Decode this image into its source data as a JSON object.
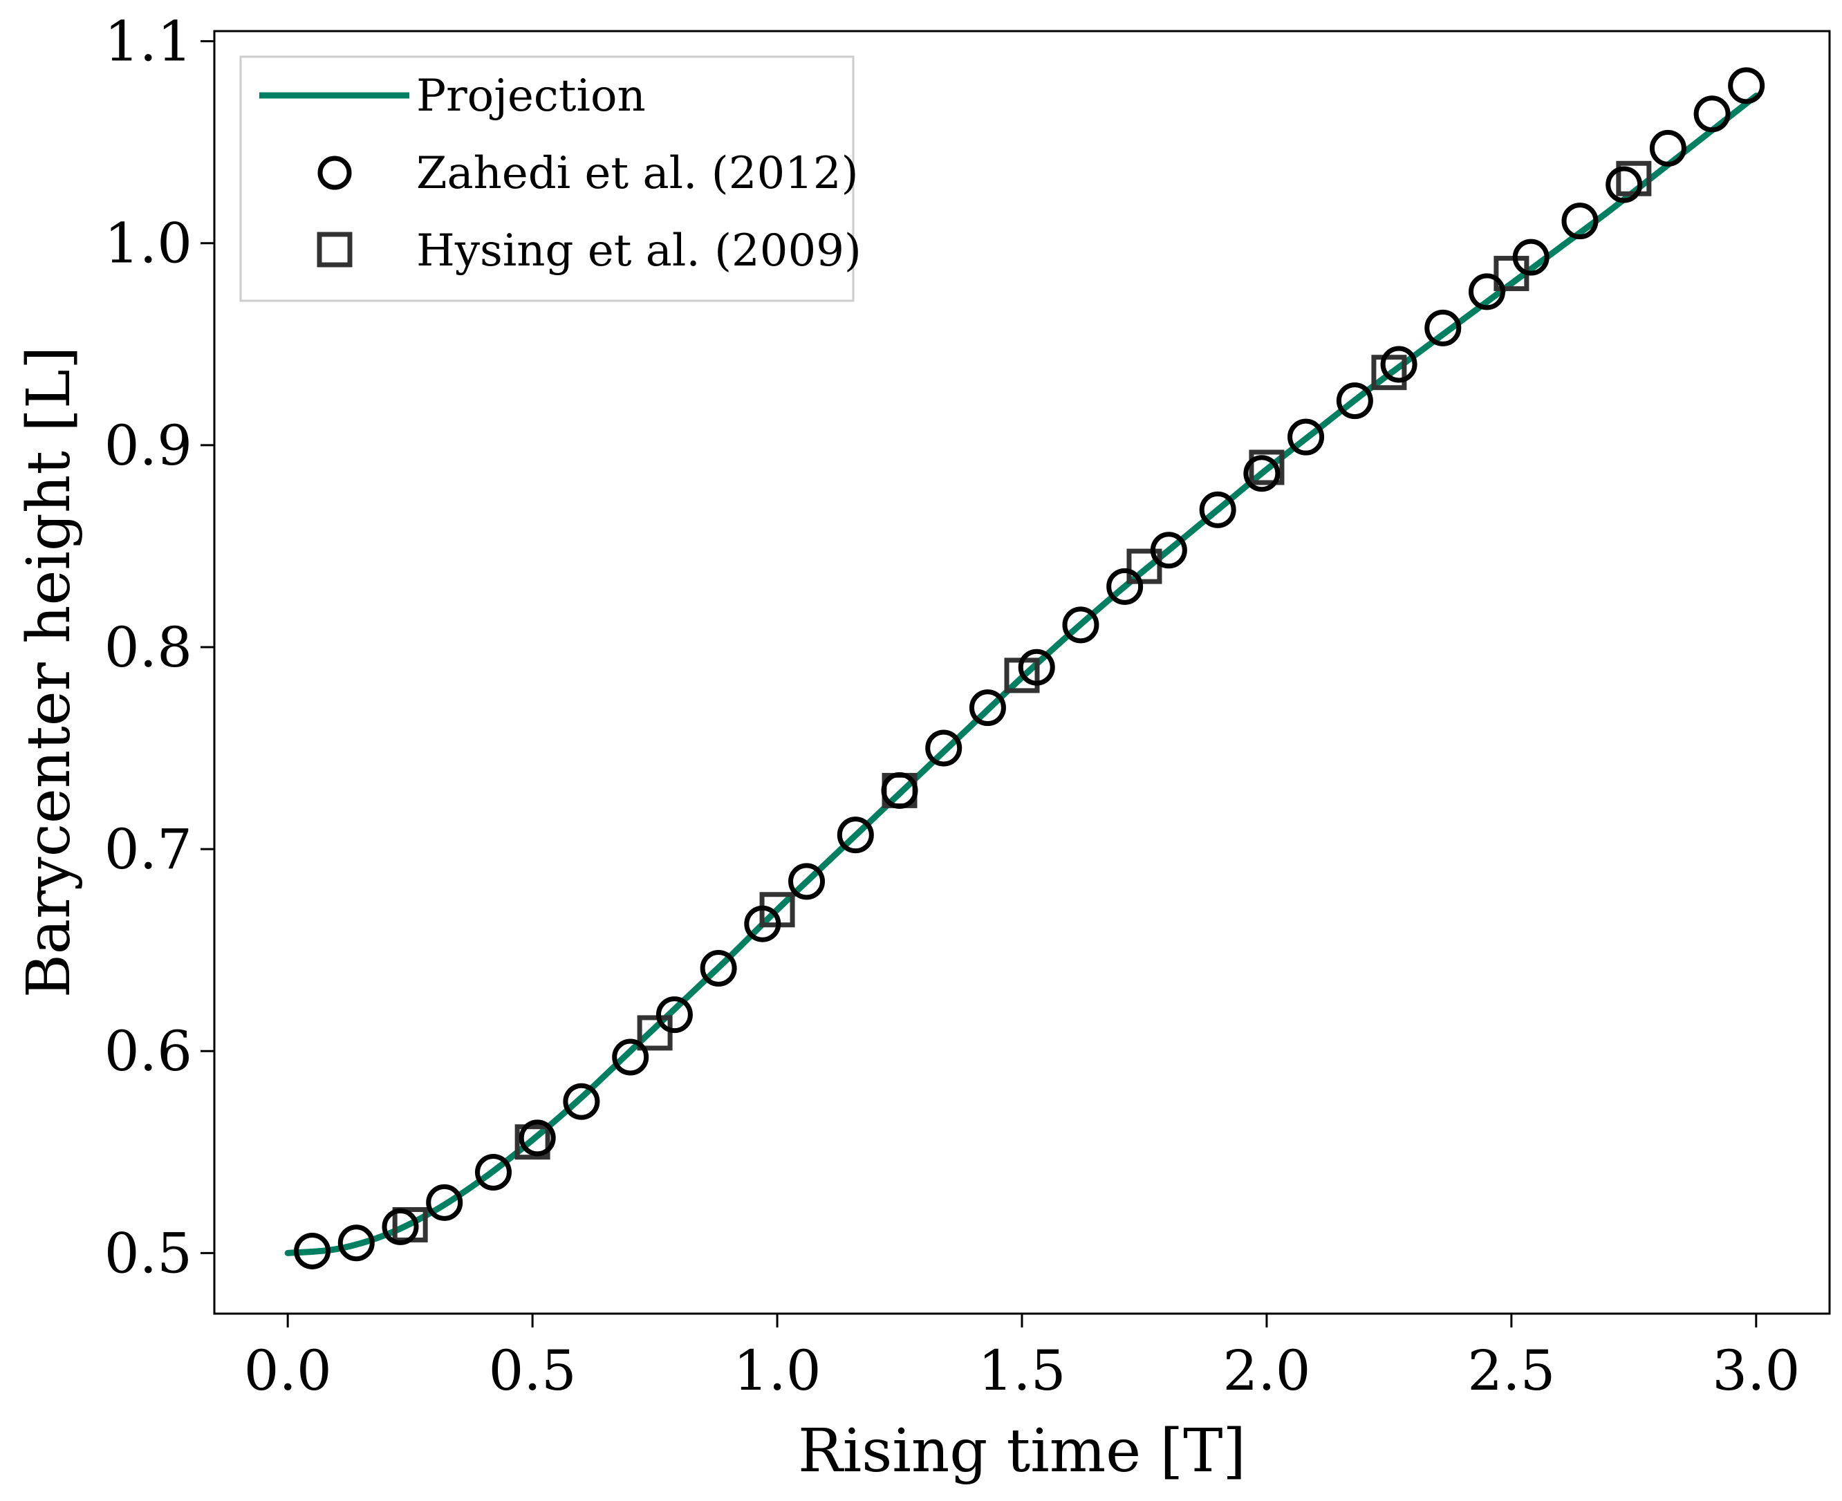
{
  "chart_data": {
    "type": "line",
    "title": "",
    "xlabel": "Rising time [T]",
    "ylabel": "Barycenter height [L]",
    "xlim": [
      -0.15,
      3.15
    ],
    "ylim": [
      0.47,
      1.105
    ],
    "xticks": [
      0.0,
      0.5,
      1.0,
      1.5,
      2.0,
      2.5,
      3.0
    ],
    "xtick_labels": [
      "0.0",
      "0.5",
      "1.0",
      "1.5",
      "2.0",
      "2.5",
      "3.0"
    ],
    "yticks": [
      0.5,
      0.6,
      0.7,
      0.8,
      0.9,
      1.0,
      1.1
    ],
    "ytick_labels": [
      "0.5",
      "0.6",
      "0.7",
      "0.8",
      "0.9",
      "1.0",
      "1.1"
    ],
    "grid": false,
    "legend_position": "top-left",
    "series": [
      {
        "name": "Projection",
        "kind": "line",
        "color": "#008060",
        "x": [
          0.0,
          0.1,
          0.2,
          0.3,
          0.4,
          0.5,
          0.6,
          0.7,
          0.8,
          0.9,
          1.0,
          1.1,
          1.2,
          1.3,
          1.4,
          1.5,
          1.6,
          1.7,
          1.8,
          1.9,
          2.0,
          2.1,
          2.2,
          2.3,
          2.4,
          2.5,
          2.6,
          2.7,
          2.8,
          2.9,
          3.0
        ],
        "y": [
          0.5,
          0.502,
          0.509,
          0.521,
          0.537,
          0.556,
          0.577,
          0.6,
          0.623,
          0.646,
          0.67,
          0.693,
          0.716,
          0.739,
          0.762,
          0.785,
          0.807,
          0.828,
          0.848,
          0.868,
          0.888,
          0.907,
          0.926,
          0.944,
          0.962,
          0.98,
          0.998,
          1.016,
          1.035,
          1.054,
          1.073
        ]
      },
      {
        "name": "Zahedi et al. (2012)",
        "kind": "scatter",
        "marker": "circle",
        "color": "#000000",
        "x": [
          0.05,
          0.14,
          0.23,
          0.32,
          0.42,
          0.51,
          0.6,
          0.7,
          0.79,
          0.88,
          0.97,
          1.06,
          1.16,
          1.25,
          1.34,
          1.43,
          1.53,
          1.62,
          1.71,
          1.8,
          1.9,
          1.99,
          2.08,
          2.18,
          2.27,
          2.36,
          2.45,
          2.54,
          2.64,
          2.73,
          2.82,
          2.91,
          2.98
        ],
        "y": [
          0.501,
          0.505,
          0.513,
          0.525,
          0.54,
          0.557,
          0.575,
          0.597,
          0.618,
          0.641,
          0.663,
          0.684,
          0.707,
          0.729,
          0.75,
          0.77,
          0.79,
          0.811,
          0.83,
          0.848,
          0.868,
          0.886,
          0.904,
          0.922,
          0.94,
          0.958,
          0.976,
          0.993,
          1.011,
          1.029,
          1.047,
          1.064,
          1.078
        ]
      },
      {
        "name": "Hysing et al. (2009)",
        "kind": "scatter",
        "marker": "square",
        "color": "#333333",
        "x": [
          0.25,
          0.5,
          0.75,
          1.0,
          1.25,
          1.5,
          1.75,
          2.0,
          2.25,
          2.5,
          2.75
        ],
        "y": [
          0.514,
          0.555,
          0.609,
          0.67,
          0.729,
          0.786,
          0.84,
          0.889,
          0.936,
          0.985,
          1.032
        ]
      }
    ]
  }
}
